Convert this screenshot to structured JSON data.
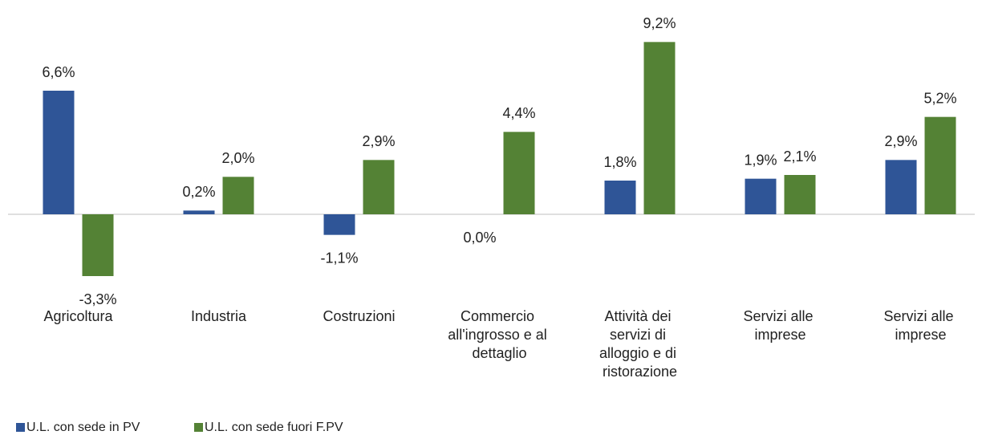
{
  "chart_data": {
    "type": "bar",
    "categories": [
      "Agricoltura",
      "Industria",
      "Costruzioni",
      "Commercio all'ingrosso e al dettaglio",
      "Attività dei servizi di alloggio e di ristorazione",
      "Servizi alle imprese",
      "Servizi alle imprese"
    ],
    "series": [
      {
        "name": "U.L. con sede in PV",
        "color": "#2f5597",
        "values": [
          6.6,
          0.2,
          -1.1,
          0.0,
          1.8,
          1.9,
          2.9
        ],
        "value_labels": [
          "6,6%",
          "0,2%",
          "-1,1%",
          "0,0%",
          "1,8%",
          "1,9%",
          "2,9%"
        ]
      },
      {
        "name": "U.L. con sede fuori F.PV",
        "color": "#548235",
        "values": [
          -3.3,
          2.0,
          2.9,
          4.4,
          9.2,
          2.1,
          5.2
        ],
        "value_labels": [
          "-3,3%",
          "2,0%",
          "2,9%",
          "4,4%",
          "9,2%",
          "2,1%",
          "5,2%"
        ]
      }
    ],
    "ylim": [
      -4.5,
      10.5
    ]
  }
}
